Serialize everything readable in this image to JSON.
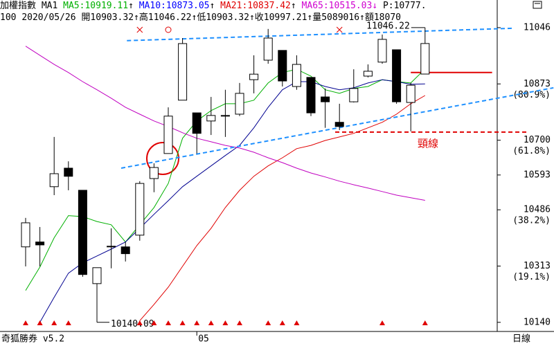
{
  "header": {
    "symbol": "加權指數",
    "period": "MA1",
    "p_readout": "P:10777.",
    "quote": [
      {
        "text": "100"
      },
      {
        "text": "2020/05/26"
      },
      {
        "text": "開10903.32",
        "arrow": "↑"
      },
      {
        "text": "高11046.22",
        "arrow": "↑"
      },
      {
        "text": "低10903.32",
        "arrow": "↑"
      },
      {
        "text": "收10997.21",
        "arrow": "↑"
      },
      {
        "text": "量5089016",
        "arrow": "↑"
      },
      {
        "text": "額18070"
      }
    ]
  },
  "footer": {
    "brand": "奇狐勝券 v5.2",
    "period": "日線"
  },
  "chart_data": {
    "type": "candlestick",
    "categories": [
      null,
      null,
      null,
      null,
      null,
      null,
      null,
      null,
      null,
      null,
      null,
      null,
      "05",
      null,
      null,
      null,
      null,
      null,
      null,
      null,
      null,
      null,
      null,
      null,
      null,
      null,
      null,
      null,
      null
    ],
    "open": [
      10372,
      10387,
      10557,
      10614,
      10546,
      10259,
      10372,
      10372,
      10408,
      10582,
      10659,
      10823,
      10784,
      10759,
      10774,
      10780,
      10886,
      10946,
      10976,
      10865,
      10893,
      10833,
      10755,
      10818,
      10897,
      10940,
      10978,
      10816,
      10903.32
    ],
    "high": [
      10461,
      10433,
      10710,
      10635,
      10546,
      10308,
      10429,
      10387,
      10574,
      10629,
      10801,
      11014,
      10784,
      10833,
      10855,
      10876,
      10961,
      11042,
      10976,
      10961,
      10893,
      10859,
      10812,
      10918,
      10933,
      11025,
      10978,
      10876,
      11046.22
    ],
    "low": [
      10312,
      10312,
      10531,
      10546,
      10280,
      10140.09,
      10306,
      10327,
      10391,
      10540,
      10659,
      10823,
      10659,
      10716,
      10710,
      10774,
      10844,
      10935,
      10865,
      10855,
      10774,
      10738,
      10731,
      10816,
      10893,
      10935,
      10812,
      10727,
      10903.32
    ],
    "close": [
      10446,
      10378,
      10597,
      10589,
      10287,
      10308,
      10374,
      10351,
      10567,
      10616,
      10774,
      10997,
      10721,
      10776,
      10776,
      10844,
      10903,
      11014,
      10882,
      10933,
      10784,
      10818,
      10742,
      10859,
      10912,
      11010,
      10818,
      10869,
      10997.21
    ],
    "up_color": "#ffffff",
    "down_color": "#000000",
    "series": [
      {
        "name": "MA5:10919.11",
        "trend": "↑",
        "color": "#00b000",
        "legend_color": "#00b000",
        "values": [
          10238,
          10310,
          10400,
          10468,
          10465,
          10450,
          10440,
          10387,
          10440,
          10493,
          10567,
          10706,
          10759,
          10791,
          10812,
          10812,
          10823,
          10876,
          10908,
          10918,
          10897,
          10855,
          10844,
          10859,
          10865,
          10886,
          10880,
          10876,
          10919.11
        ]
      },
      {
        "name": "MA10:10873.05",
        "trend": "↑",
        "color": "#000090",
        "legend_color": "#0000ff",
        "values": [
          null,
          10140,
          10217,
          10291,
          10323,
          10344,
          10365,
          10387,
          10429,
          10472,
          10514,
          10557,
          10589,
          10621,
          10653,
          10684,
          10738,
          10801,
          10855,
          10880,
          10880,
          10865,
          10855,
          10861,
          10876,
          10886,
          10880,
          10872,
          10873.05
        ]
      },
      {
        "name": "MA21:10837.42",
        "trend": "↑",
        "color": "#e00000",
        "legend_color": "#e00000",
        "values": [
          null,
          null,
          null,
          null,
          null,
          null,
          null,
          null,
          10145,
          10195,
          10248,
          10312,
          10376,
          10429,
          10493,
          10546,
          10589,
          10621,
          10646,
          10674,
          10684,
          10699,
          10710,
          10721,
          10738,
          10755,
          10780,
          10812,
          10837.42
        ]
      },
      {
        "name": "MA65:10515.03",
        "trend": "↓",
        "color": "#c000c0",
        "legend_color": "#d000d0",
        "values": [
          10989,
          10961,
          10933,
          10908,
          10880,
          10855,
          10829,
          10801,
          10780,
          10759,
          10742,
          10723,
          10706,
          10695,
          10684,
          10676,
          10663,
          10646,
          10631,
          10614,
          10599,
          10587,
          10574,
          10563,
          10553,
          10542,
          10531,
          10523,
          10515.03
        ]
      }
    ],
    "ylim": [
      10114,
      11131
    ],
    "yticks": [
      11046,
      10873,
      10700,
      10593,
      10486,
      10313,
      10140
    ],
    "fib_labels": [
      {
        "value": 10873,
        "label": "(80.9%)"
      },
      {
        "value": 10700,
        "label": "(61.8%)"
      },
      {
        "value": 10486,
        "label": "(38.2%)"
      },
      {
        "value": 10313,
        "label": "(19.1%)"
      }
    ],
    "annotations": [
      {
        "value": 11046.22,
        "index": 28
      },
      {
        "value": 10140.09,
        "index": 5
      }
    ],
    "trend_lines": [
      {
        "color": "#1e90ff",
        "style": "dashed",
        "x": [
          7.1,
          34.1
        ],
        "y": [
          11006,
          11044
        ]
      },
      {
        "color": "#1e90ff",
        "style": "dashed",
        "x": [
          6.7,
          37.0
        ],
        "y": [
          10614,
          10861
        ]
      },
      {
        "color": "#e00000",
        "style": "dashed",
        "x": [
          21.7,
          35.2
        ],
        "y": [
          10725,
          10725
        ],
        "label": "頸線"
      },
      {
        "color": "#e00000",
        "style": "solid",
        "x": [
          27.0,
          32.7
        ],
        "y": [
          10908,
          10908
        ]
      }
    ],
    "buy_signals": [
      0,
      1,
      2,
      3,
      8,
      9,
      10,
      11,
      12,
      13,
      14,
      15,
      17,
      18,
      19,
      25,
      28
    ],
    "cross_signals": [
      8,
      22
    ],
    "circle_signals": [
      10
    ],
    "signal_color": "#e00000"
  }
}
